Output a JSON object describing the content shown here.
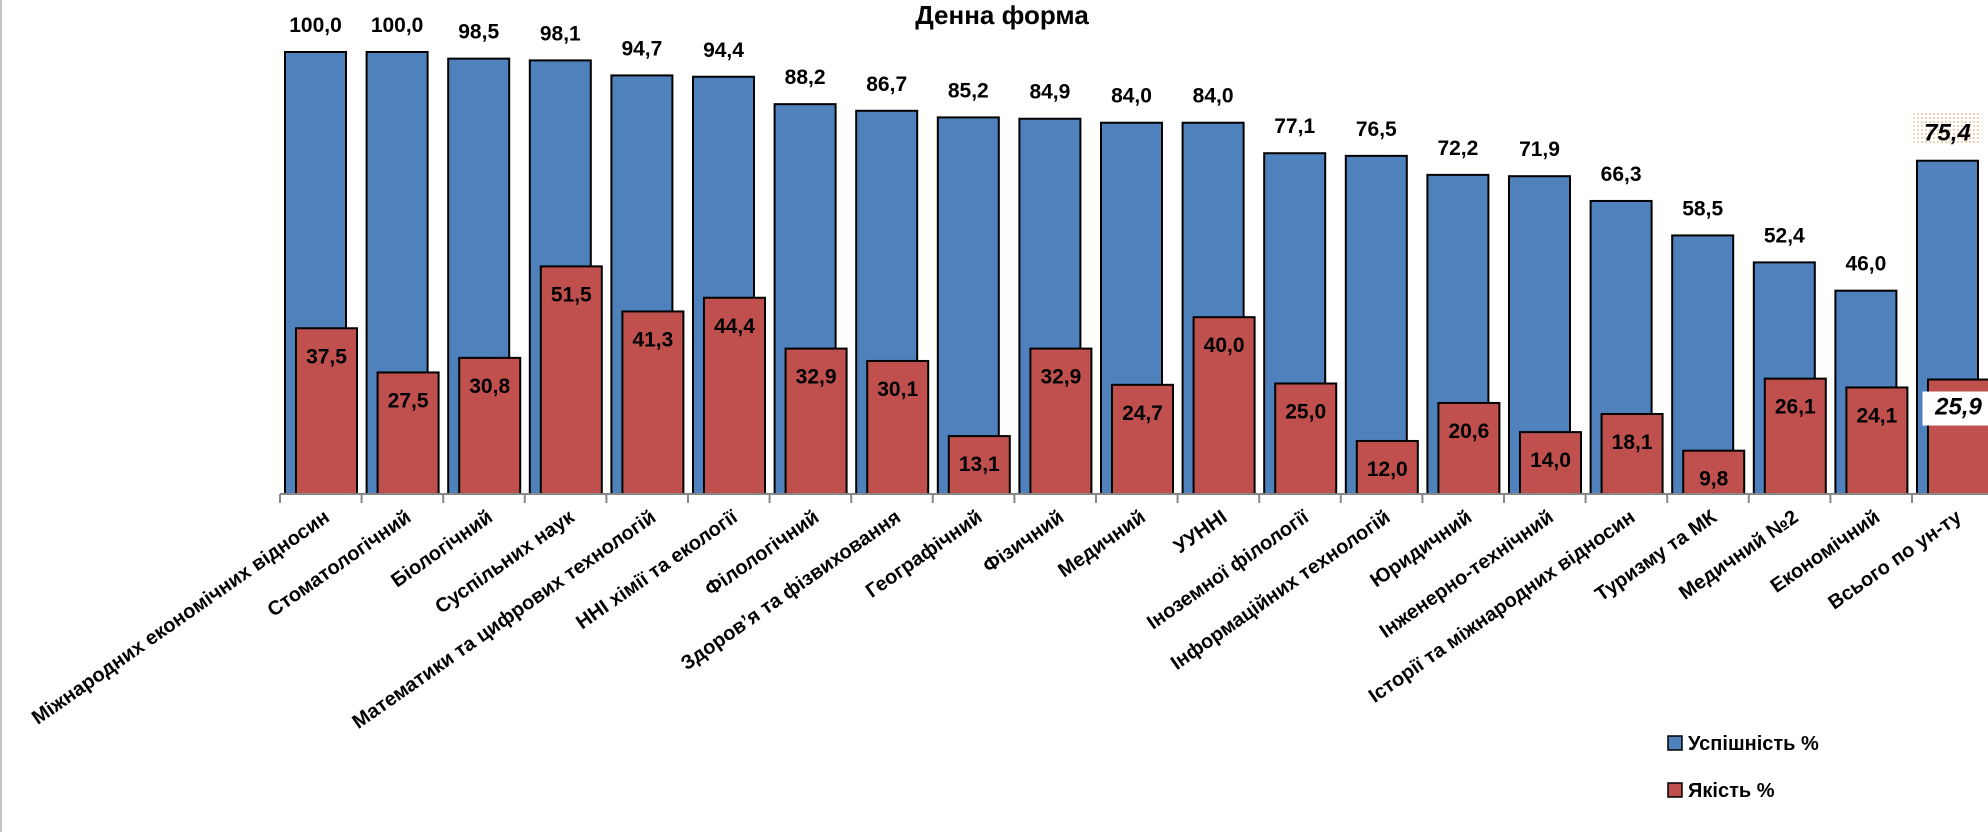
{
  "chart_data": {
    "type": "bar",
    "title": "Денна форма",
    "xlabel": "",
    "ylabel": "",
    "ylim": [
      0,
      100
    ],
    "grid": false,
    "legend_position": "bottom-right",
    "categories": [
      "Міжнародних економічних відносин",
      "Стоматологічний",
      "Біологічний",
      "Суспільних наук",
      "Математики та цифрових технологій",
      "ННІ хімії та екології",
      "Філологічний",
      "Здоров’я та фізвиховання",
      "Географічний",
      "Фізичний",
      "Медичний",
      "УУННІ",
      "Іноземної філології",
      "Інформаційних технологій",
      "Юридичний",
      "Інженерно-технічний",
      "Історії та міжнародних відносин",
      "Туризму та МК",
      "Медичний №2",
      "Економічний",
      "Всього по ун-ту"
    ],
    "series": [
      {
        "name": "Успішність %",
        "color": "#4F81BD",
        "values": [
          100.0,
          100.0,
          98.5,
          98.1,
          94.7,
          94.4,
          88.2,
          86.7,
          85.2,
          84.9,
          84.0,
          84.0,
          77.1,
          76.5,
          72.2,
          71.9,
          66.3,
          58.5,
          52.4,
          46.0,
          75.4
        ],
        "labels": [
          "100,0",
          "100,0",
          "98,5",
          "98,1",
          "94,7",
          "94,4",
          "88,2",
          "86,7",
          "85,2",
          "84,9",
          "84,0",
          "84,0",
          "77,1",
          "76,5",
          "72,2",
          "71,9",
          "66,3",
          "58,5",
          "52,4",
          "46,0",
          "75,4"
        ]
      },
      {
        "name": "Якість %",
        "color": "#C0504D",
        "values": [
          37.5,
          27.5,
          30.8,
          51.5,
          41.3,
          44.4,
          32.9,
          30.1,
          13.1,
          32.9,
          24.7,
          40.0,
          25.0,
          12.0,
          20.6,
          14.0,
          18.1,
          9.8,
          26.1,
          24.1,
          25.9
        ],
        "labels": [
          "37,5",
          "27,5",
          "30,8",
          "51,5",
          "41,3",
          "44,4",
          "32,9",
          "30,1",
          "13,1",
          "32,9",
          "24,7",
          "40,0",
          "25,0",
          "12,0",
          "20,6",
          "14,0",
          "18,1",
          "9,8",
          "26,1",
          "24,1",
          "25,9"
        ]
      }
    ],
    "highlighted_category": "Всього по ун-ту"
  }
}
